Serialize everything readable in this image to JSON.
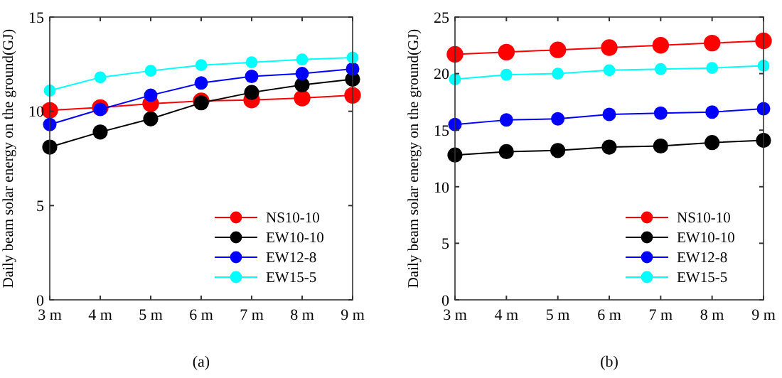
{
  "chart_data": [
    {
      "type": "line",
      "categories": [
        "3 m",
        "4 m",
        "5 m",
        "6 m",
        "7 m",
        "8 m",
        "9 m"
      ],
      "ylabel": "Daily beam solar energy on the ground(GJ)",
      "ylim": [
        0,
        15
      ],
      "yticks": [
        0,
        5,
        10,
        15
      ],
      "marker": "circle",
      "legend": "bottom right",
      "grid": false,
      "annotations": [
        "(a)"
      ],
      "series": [
        {
          "name": "NS10-10",
          "color": "#ff0000",
          "values": [
            10.05,
            10.2,
            10.4,
            10.55,
            10.6,
            10.7,
            10.85
          ]
        },
        {
          "name": "EW10-10",
          "color": "#000000",
          "values": [
            8.1,
            8.9,
            9.6,
            10.45,
            11.0,
            11.4,
            11.7
          ]
        },
        {
          "name": "EW12-8",
          "color": "#0000ff",
          "values": [
            9.3,
            10.1,
            10.85,
            11.5,
            11.85,
            12.0,
            12.25
          ]
        },
        {
          "name": "EW15-5",
          "color": "#00ffff",
          "values": [
            11.1,
            11.8,
            12.15,
            12.45,
            12.6,
            12.75,
            12.85
          ]
        }
      ]
    },
    {
      "type": "line",
      "categories": [
        "3 m",
        "4 m",
        "5 m",
        "6 m",
        "7 m",
        "8 m",
        "9 m"
      ],
      "ylabel": "Daily beam solar energy on the ground(GJ)",
      "ylim": [
        0,
        25
      ],
      "yticks": [
        0,
        5,
        10,
        15,
        20,
        25
      ],
      "marker": "circle",
      "legend": "bottom right",
      "grid": false,
      "annotations": [
        "(b)"
      ],
      "series": [
        {
          "name": "NS10-10",
          "color": "#ff0000",
          "values": [
            21.7,
            21.9,
            22.1,
            22.3,
            22.5,
            22.7,
            22.9
          ]
        },
        {
          "name": "EW10-10",
          "color": "#000000",
          "values": [
            12.8,
            13.1,
            13.2,
            13.5,
            13.6,
            13.9,
            14.1
          ]
        },
        {
          "name": "EW12-8",
          "color": "#0000ff",
          "values": [
            15.5,
            15.9,
            16.0,
            16.4,
            16.5,
            16.6,
            16.9
          ]
        },
        {
          "name": "EW15-5",
          "color": "#00ffff",
          "values": [
            19.5,
            19.9,
            20.0,
            20.3,
            20.4,
            20.5,
            20.7
          ]
        }
      ]
    }
  ]
}
